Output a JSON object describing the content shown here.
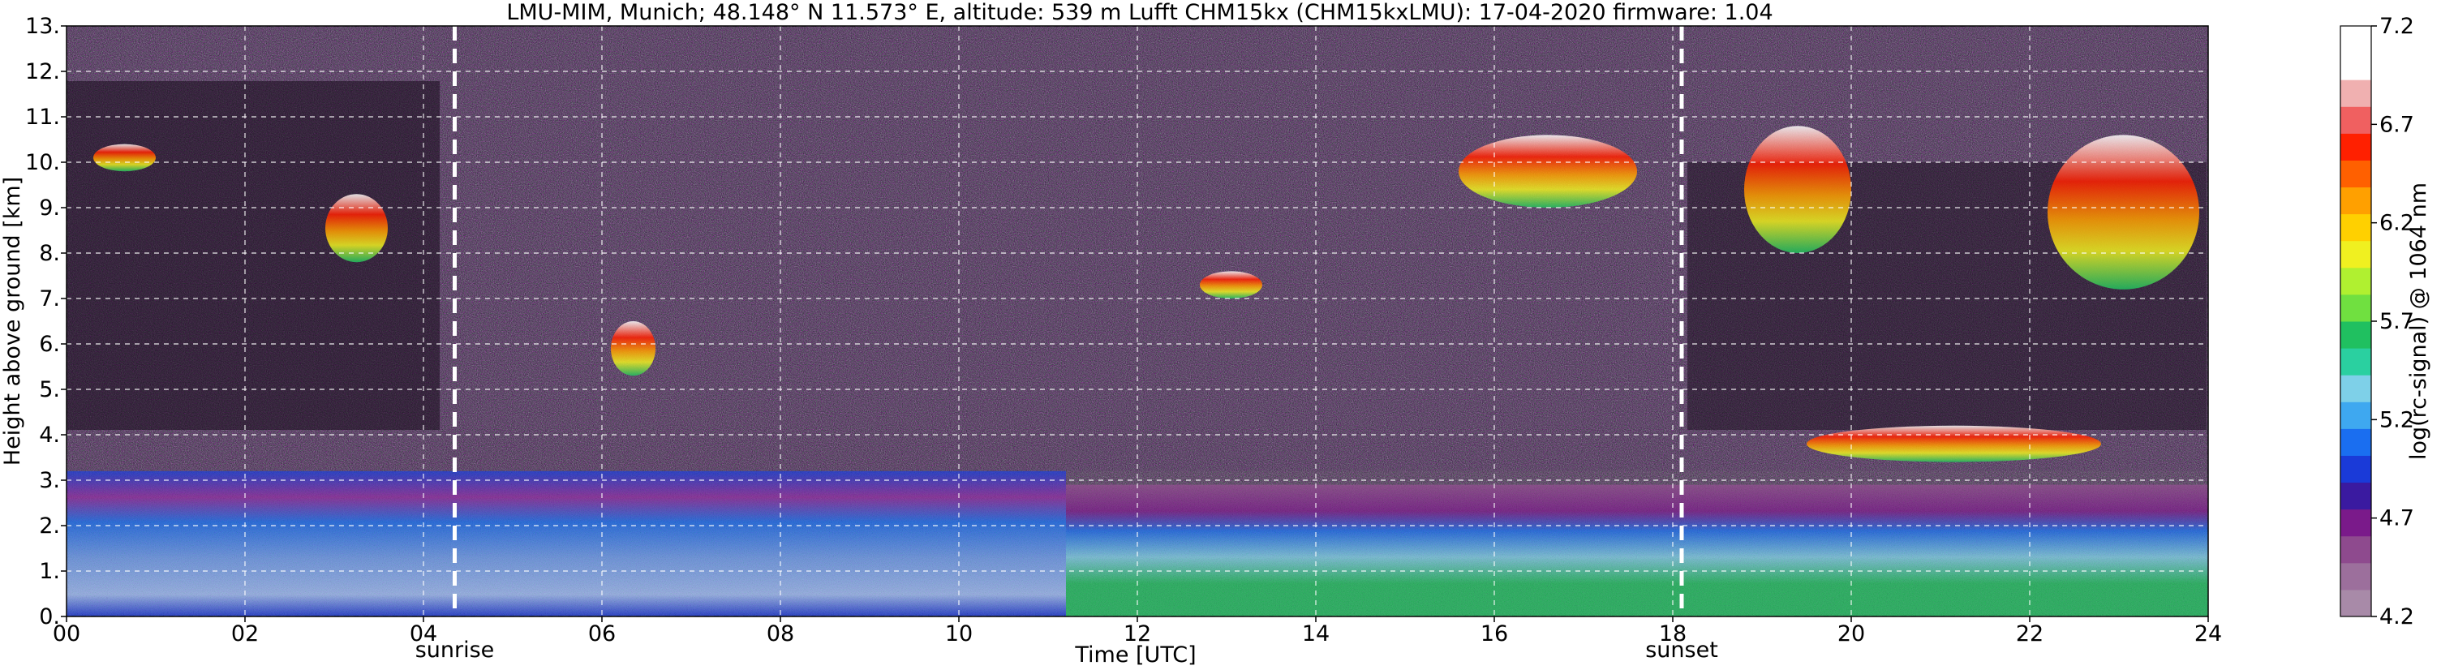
{
  "title": "LMU-MIM, Munich; 48.148° N 11.573° E, altitude: 539 m    Lufft CHM15kx (CHM15kxLMU): 17-04-2020    firmware: 1.04",
  "colors": {
    "noise_bg": "#2a1830",
    "colorbar_levels": [
      "#a88aa8",
      "#9c6f9c",
      "#8e4a8e",
      "#7a1a8a",
      "#3a1aa0",
      "#1a3ad8",
      "#1a6ef0",
      "#3ea8f0",
      "#7ed0e8",
      "#2ad0a0",
      "#20c060",
      "#70e040",
      "#b0f030",
      "#f0f020",
      "#ffd000",
      "#ffa000",
      "#ff6000",
      "#ff2000",
      "#f06060",
      "#f0b0b0",
      "#ffffff",
      "#ffffff"
    ]
  },
  "chart_data": {
    "type": "heatmap",
    "title": "LMU-MIM, Munich; 48.148° N 11.573° E, altitude: 539 m    Lufft CHM15kx (CHM15kxLMU): 17-04-2020    firmware: 1.04",
    "xlabel": "Time [UTC]",
    "ylabel": "Height above ground [km]",
    "xlim": [
      0,
      24
    ],
    "ylim": [
      0,
      13
    ],
    "x_ticks": [
      "00",
      "02",
      "04",
      "06",
      "08",
      "10",
      "12",
      "14",
      "16",
      "18",
      "20",
      "22",
      "24"
    ],
    "y_ticks": [
      "0.",
      "1.",
      "2.",
      "3.",
      "4.",
      "5.",
      "6.",
      "7.",
      "8.",
      "9.",
      "10.",
      "11.",
      "12.",
      "13."
    ],
    "grid": true,
    "colorbar": {
      "label": "log(rc-signal) @ 1064 nm",
      "range": [
        4.2,
        7.2
      ],
      "ticks": [
        "4.2",
        "4.7",
        "5.2",
        "5.7",
        "6.2",
        "6.7",
        "7.2"
      ]
    },
    "annotations": [
      {
        "label": "sunrise",
        "x": 4.35
      },
      {
        "label": "sunset",
        "x": 18.1
      }
    ],
    "layers": [
      {
        "type": "boundary_layer",
        "x_start": 0,
        "x_end": 24,
        "top_km": 3.2
      },
      {
        "type": "cloud",
        "x_start": 0.3,
        "x_end": 1.0,
        "bottom_km": 9.8,
        "top_km": 10.4
      },
      {
        "type": "cloud",
        "x_start": 2.9,
        "x_end": 3.6,
        "bottom_km": 7.8,
        "top_km": 9.3
      },
      {
        "type": "cloud",
        "x_start": 6.1,
        "x_end": 6.6,
        "bottom_km": 5.3,
        "top_km": 6.5
      },
      {
        "type": "cloud",
        "x_start": 12.7,
        "x_end": 13.4,
        "bottom_km": 7.0,
        "top_km": 7.6
      },
      {
        "type": "cloud",
        "x_start": 15.6,
        "x_end": 17.6,
        "bottom_km": 9.0,
        "top_km": 10.6
      },
      {
        "type": "cloud",
        "x_start": 18.8,
        "x_end": 20.0,
        "bottom_km": 8.0,
        "top_km": 10.8
      },
      {
        "type": "cloud",
        "x_start": 22.2,
        "x_end": 23.9,
        "bottom_km": 7.2,
        "top_km": 10.6
      },
      {
        "type": "cloud",
        "x_start": 19.5,
        "x_end": 22.8,
        "bottom_km": 3.4,
        "top_km": 4.2
      }
    ]
  }
}
